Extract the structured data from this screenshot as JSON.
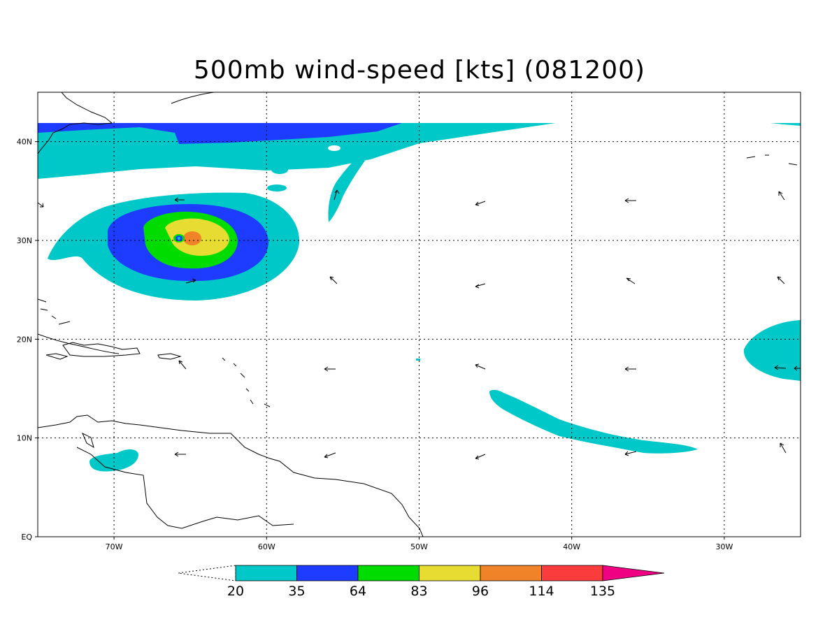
{
  "title": "500mb wind-speed [kts] (081200)",
  "axes": {
    "lon_labels": [
      "70W",
      "60W",
      "50W",
      "40W",
      "30W"
    ],
    "lat_labels": [
      "40N",
      "30N",
      "20N",
      "10N",
      "EQ"
    ],
    "lon_range": [
      -75,
      -25
    ],
    "lat_range": [
      0,
      45
    ]
  },
  "colorbar": {
    "levels": [
      "20",
      "35",
      "64",
      "83",
      "96",
      "114",
      "135"
    ],
    "colors": [
      "#00c8c8",
      "#1e3cff",
      "#00dc00",
      "#e6dc32",
      "#f08228",
      "#fa3c3c",
      "#f00082"
    ]
  }
}
